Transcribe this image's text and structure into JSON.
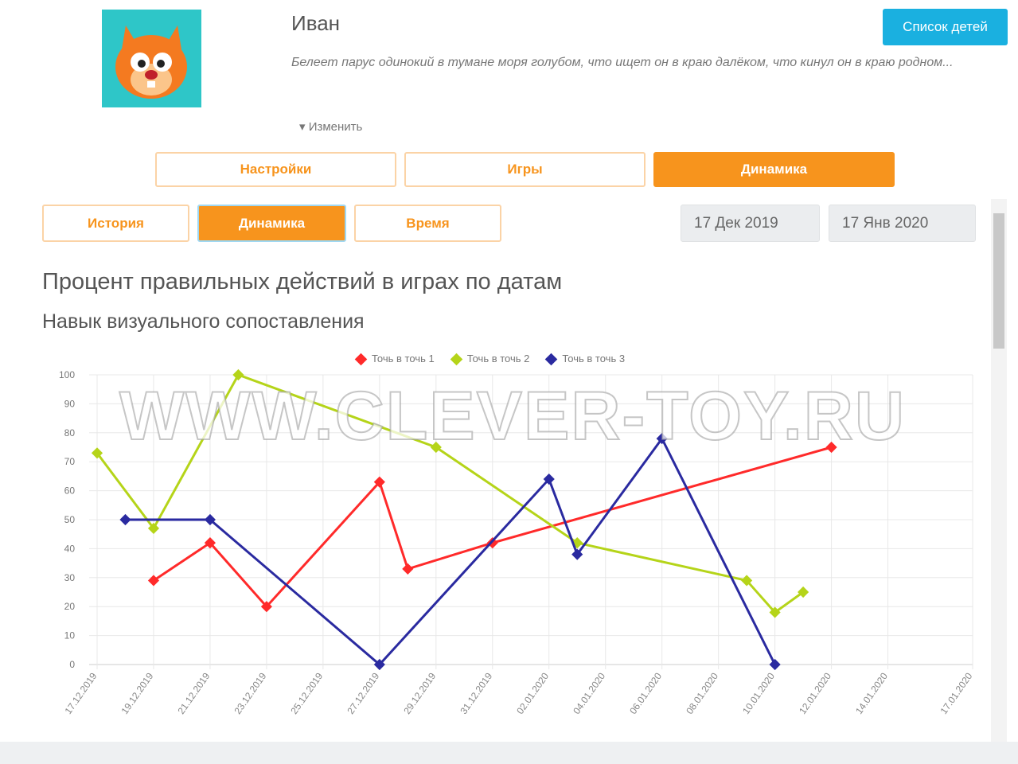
{
  "profile": {
    "name": "Иван",
    "bio": "Белеет парус одинокий в тумане моря голубом, что ищет он в краю далёком, что кинул он в краю родном...",
    "edit_label": "▾ Изменить",
    "avatar_icon": "squirrel-avatar",
    "avatar_bg": "#2ec6c8"
  },
  "header": {
    "kids_list_label": "Список детей"
  },
  "main_tabs": [
    {
      "label": "Настройки",
      "active": false
    },
    {
      "label": "Игры",
      "active": false
    },
    {
      "label": "Динамика",
      "active": true
    }
  ],
  "sub_tabs": [
    {
      "label": "История",
      "active": false
    },
    {
      "label": "Динамика",
      "active": true
    },
    {
      "label": "Время",
      "active": false
    }
  ],
  "date_range": {
    "from": "17 Дек 2019",
    "to": "17 Янв 2020"
  },
  "chart_title": "Процент правильных действий в играх по датам",
  "chart_subtitle": "Навык визуального сопоставления",
  "watermark": "WWW.CLEVER-TOY.RU",
  "colors": {
    "accent": "#f7941d",
    "button_blue": "#1ab0e0"
  },
  "chart_data": {
    "type": "line",
    "xlim": [
      "2019-12-17",
      "2020-01-17"
    ],
    "ylim": [
      0,
      100
    ],
    "yticks": [
      0,
      10,
      20,
      30,
      40,
      50,
      60,
      70,
      80,
      90,
      100
    ],
    "xtick_labels": [
      "17.12.2019",
      "19.12.2019",
      "21.12.2019",
      "23.12.2019",
      "25.12.2019",
      "27.12.2019",
      "29.12.2019",
      "31.12.2019",
      "02.01.2020",
      "04.01.2020",
      "06.01.2020",
      "08.01.2020",
      "10.01.2020",
      "12.01.2020",
      "14.01.2020",
      "17.01.2020"
    ],
    "xtick_dates": [
      "2019-12-17",
      "2019-12-19",
      "2019-12-21",
      "2019-12-23",
      "2019-12-25",
      "2019-12-27",
      "2019-12-29",
      "2019-12-31",
      "2020-01-02",
      "2020-01-04",
      "2020-01-06",
      "2020-01-08",
      "2020-01-10",
      "2020-01-12",
      "2020-01-14",
      "2020-01-17"
    ],
    "grid": true,
    "legend_position": "top",
    "series": [
      {
        "name": "Точь в точь 1",
        "color": "#ff2a2a",
        "points": [
          [
            "2019-12-19",
            29
          ],
          [
            "2019-12-21",
            42
          ],
          [
            "2019-12-23",
            20
          ],
          [
            "2019-12-27",
            63
          ],
          [
            "2019-12-28",
            33
          ],
          [
            "2019-12-31",
            42
          ],
          [
            "2020-01-12",
            75
          ]
        ]
      },
      {
        "name": "Точь в точь 2",
        "color": "#b5d419",
        "points": [
          [
            "2019-12-17",
            73
          ],
          [
            "2019-12-19",
            47
          ],
          [
            "2019-12-22",
            100
          ],
          [
            "2019-12-29",
            75
          ],
          [
            "2020-01-03",
            42
          ],
          [
            "2020-01-09",
            29
          ],
          [
            "2020-01-10",
            18
          ],
          [
            "2020-01-11",
            25
          ]
        ]
      },
      {
        "name": "Точь в точь 3",
        "color": "#2a2aa0",
        "points": [
          [
            "2019-12-18",
            50
          ],
          [
            "2019-12-21",
            50
          ],
          [
            "2019-12-27",
            0
          ],
          [
            "2020-01-02",
            64
          ],
          [
            "2020-01-03",
            38
          ],
          [
            "2020-01-06",
            78
          ],
          [
            "2020-01-10",
            0
          ]
        ]
      }
    ]
  }
}
